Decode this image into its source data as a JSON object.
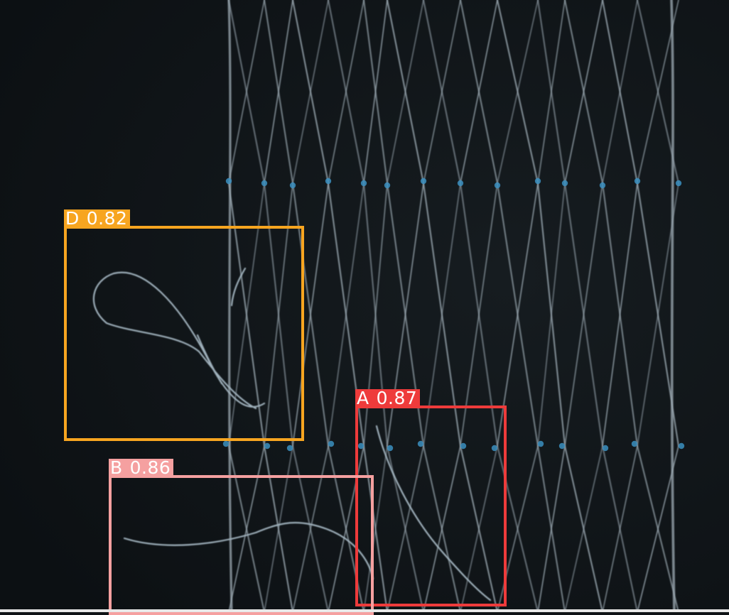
{
  "detections": [
    {
      "id": "det-d",
      "class_label": "D",
      "confidence": "0.82",
      "color": "#f7a520"
    },
    {
      "id": "det-a",
      "class_label": "A",
      "confidence": "0.87",
      "color": "#ee3b3b"
    },
    {
      "id": "det-b",
      "class_label": "B",
      "confidence": "0.86",
      "color": "#f5a0a0"
    }
  ],
  "scene": {
    "background_color": "#101518",
    "net_color": "#a9b8c2",
    "knot_color": "#3b8fbf"
  }
}
